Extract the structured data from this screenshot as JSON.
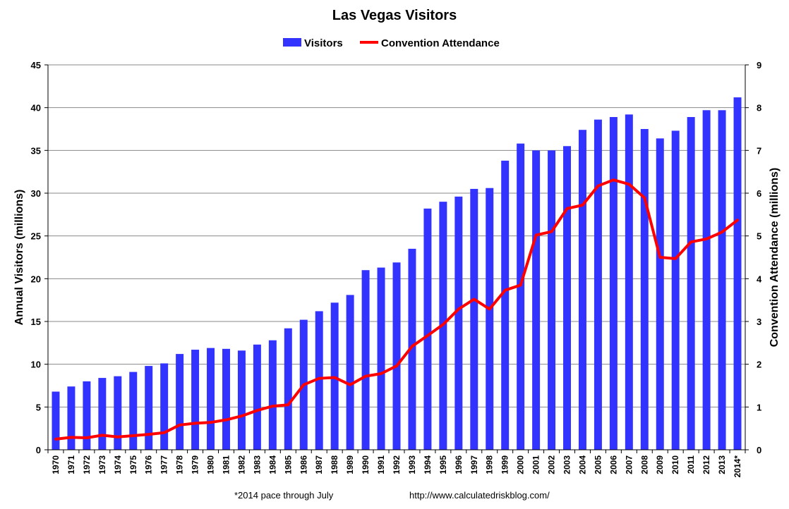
{
  "chart_data": {
    "type": "bar",
    "title": "Las Vegas Visitors",
    "categories": [
      "1970",
      "1971",
      "1972",
      "1973",
      "1974",
      "1975",
      "1976",
      "1977",
      "1978",
      "1979",
      "1980",
      "1981",
      "1982",
      "1983",
      "1984",
      "1985",
      "1986",
      "1987",
      "1988",
      "1989",
      "1990",
      "1991",
      "1992",
      "1993",
      "1994",
      "1995",
      "1996",
      "1997",
      "1998",
      "1999",
      "2000",
      "2001",
      "2002",
      "2003",
      "2004",
      "2005",
      "2006",
      "2007",
      "2008",
      "2009",
      "2010",
      "2011",
      "2012",
      "2013",
      "2014*"
    ],
    "series": [
      {
        "name": "Visitors",
        "type": "bar",
        "axis": "left",
        "color": "#3333ff",
        "values": [
          6.8,
          7.4,
          8.0,
          8.4,
          8.6,
          9.1,
          9.8,
          10.1,
          11.2,
          11.7,
          11.9,
          11.8,
          11.6,
          12.3,
          12.8,
          14.2,
          15.2,
          16.2,
          17.2,
          18.1,
          21.0,
          21.3,
          21.9,
          23.5,
          28.2,
          29.0,
          29.6,
          30.5,
          30.6,
          33.8,
          35.8,
          35.0,
          35.0,
          35.5,
          37.4,
          38.6,
          38.9,
          39.2,
          37.5,
          36.4,
          37.3,
          38.9,
          39.7,
          39.7,
          41.2
        ]
      },
      {
        "name": "Convention Attendance",
        "type": "line",
        "axis": "right",
        "color": "#ff0000",
        "values": [
          0.25,
          0.29,
          0.28,
          0.34,
          0.3,
          0.33,
          0.36,
          0.4,
          0.58,
          0.62,
          0.64,
          0.7,
          0.79,
          0.92,
          1.02,
          1.05,
          1.52,
          1.67,
          1.69,
          1.52,
          1.72,
          1.78,
          1.96,
          2.42,
          2.67,
          2.93,
          3.29,
          3.52,
          3.29,
          3.73,
          3.85,
          5.02,
          5.1,
          5.64,
          5.72,
          6.17,
          6.31,
          6.21,
          5.89,
          4.5,
          4.47,
          4.86,
          4.93,
          5.09,
          5.37
        ]
      }
    ],
    "ylabel": "Annual Visitors (millions)",
    "ylim": [
      0,
      45
    ],
    "yticks": [
      "0",
      "5",
      "10",
      "15",
      "20",
      "25",
      "30",
      "35",
      "40",
      "45"
    ],
    "y2label": "Convention Attendance (millions)",
    "y2lim": [
      0,
      9
    ],
    "y2ticks": [
      "0",
      "1",
      "2",
      "3",
      "4",
      "5",
      "6",
      "7",
      "8",
      "9"
    ],
    "grid": true,
    "legend": "top-center",
    "footnote": "*2014 pace through July",
    "source": "http://www.calculatedriskblog.com/"
  }
}
